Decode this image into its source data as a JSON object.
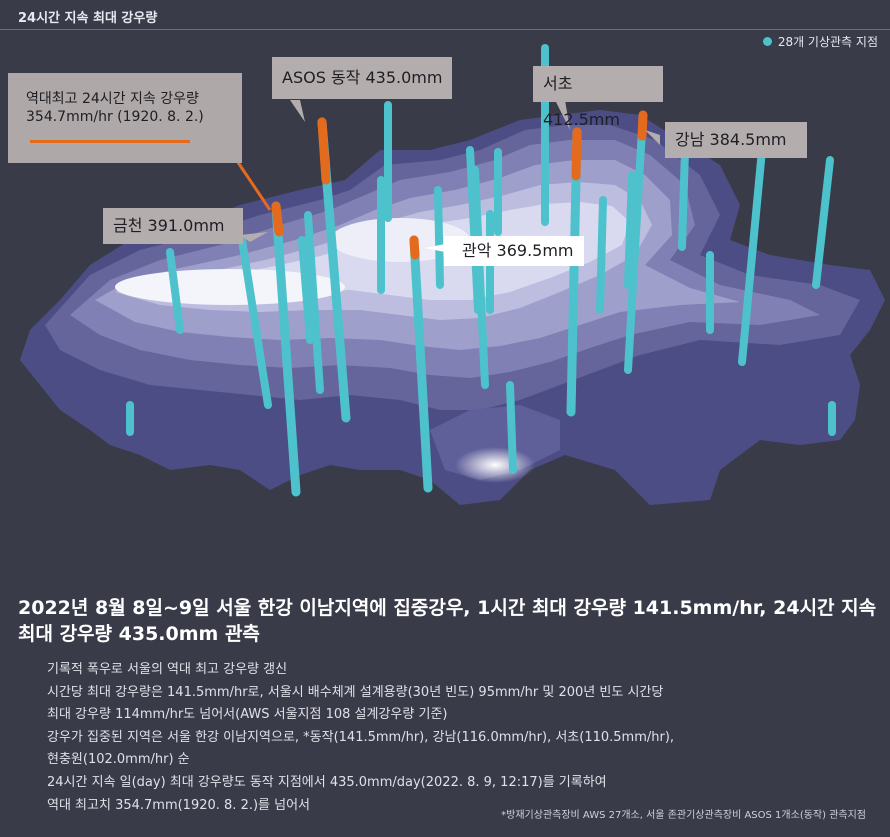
{
  "header": {
    "title": "24시간 지속 최대 강우량"
  },
  "legend": {
    "label": "28개 기상관측 지점",
    "color": "#4ec2cc"
  },
  "callouts": {
    "record_line1": "역대최고 24시간 지속 강우량",
    "record_line2": "354.7mm/hr (1920. 8. 2.)",
    "asos": "ASOS 동작 435.0mm",
    "seocho": "서초 412.5mm",
    "gangnam": "강남 384.5mm",
    "geumcheon": "금천 391.0mm",
    "gwanak": "관악 369.5mm"
  },
  "colors": {
    "pillar": "#4ec2cc",
    "highlight": "#e46a1e",
    "background": "#3a3b49"
  },
  "headline": "2022년 8월 8일~9일 서울 한강 이남지역에 집중강우, 1시간 최대 강우량 141.5mm/hr, 24시간 지속 최대 강우량 435.0mm 관측",
  "bullets": [
    "기록적 폭우로 서울의 역대 최고 강우량 갱신",
    "시간당 최대 강우량은 141.5mm/hr로, 서울시 배수체계 설계용량(30년 빈도) 95mm/hr 및 200년 빈도 시간당",
    "최대 강우량 114mm/hr도 넘어서(AWS 서울지점 108 설계강우량 기준)",
    "강우가 집중된 지역은 서울 한강 이남지역으로, *동작(141.5mm/hr), 강남(116.0mm/hr), 서초(110.5mm/hr),",
    "현충원(102.0mm/hr) 순",
    "24시간 지속 일(day) 최대 강우량도 동작 지점에서 435.0mm/day(2022. 8. 9, 12:17)를 기록하여",
    "역대 최고치 354.7mm(1920. 8. 2.)를 넘어서"
  ],
  "footnote": "*방재기상관측장비 AWS 27개소, 서울 존관기상관측장비 ASOS 1개소(동작) 관측지점"
}
